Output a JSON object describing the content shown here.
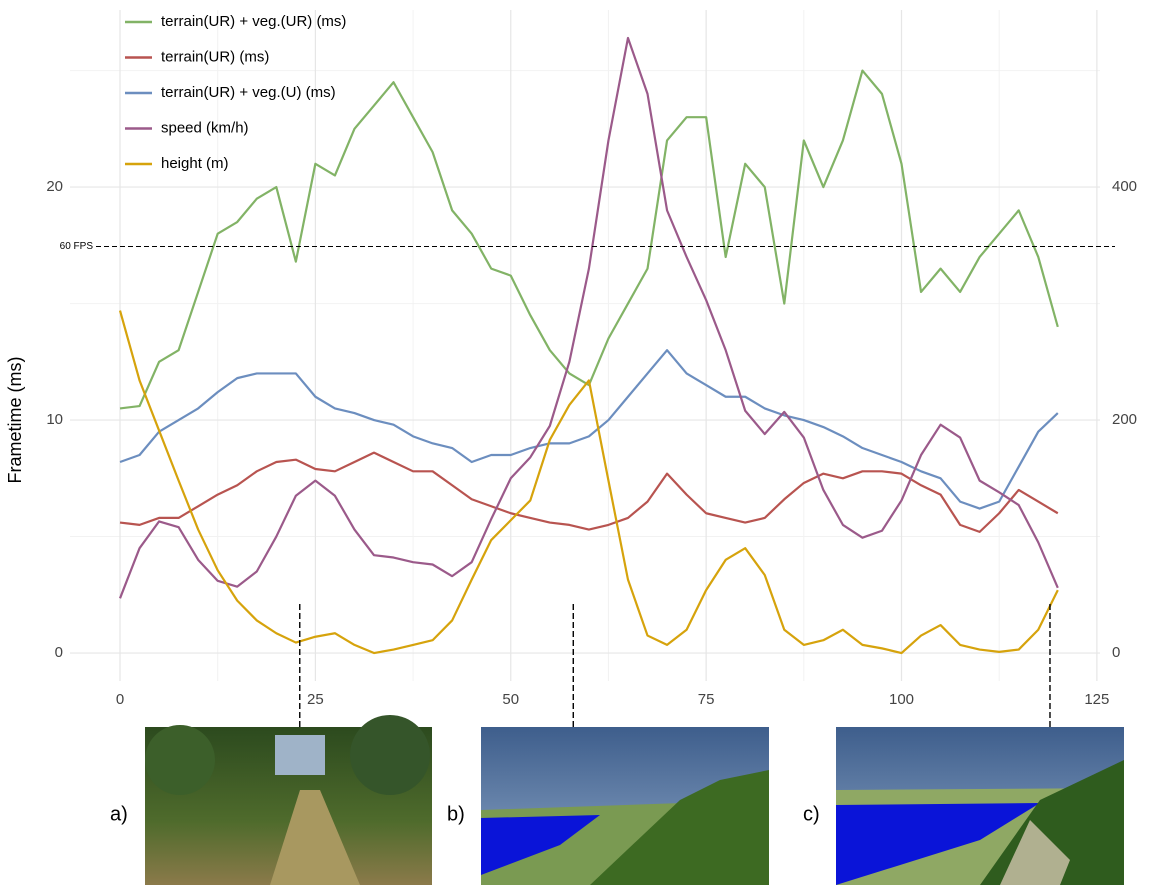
{
  "chart_data": {
    "type": "line",
    "y_label": "Frametime (ms)",
    "x": [
      0,
      2.5,
      5,
      7.5,
      10,
      12.5,
      15,
      17.5,
      20,
      22.5,
      25,
      27.5,
      30,
      32.5,
      35,
      37.5,
      40,
      42.5,
      45,
      47.5,
      50,
      52.5,
      55,
      57.5,
      60,
      62.5,
      65,
      67.5,
      70,
      72.5,
      75,
      77.5,
      80,
      82.5,
      85,
      87.5,
      90,
      92.5,
      95,
      97.5,
      100,
      102.5,
      105,
      107.5,
      110,
      112.5,
      115,
      117.5,
      120
    ],
    "series": [
      {
        "name": "terrain(UR) + veg.(UR) (ms)",
        "color": "#82b366",
        "values": [
          10.5,
          10.6,
          12.5,
          13,
          15.5,
          18,
          18.5,
          19.5,
          20,
          16.8,
          21,
          20.5,
          22.5,
          23.5,
          24.5,
          23,
          21.5,
          19,
          18,
          16.5,
          16.2,
          14.5,
          13,
          12,
          11.5,
          13.5,
          15,
          16.5,
          22,
          23,
          23,
          17,
          21,
          20,
          15,
          22,
          20,
          22,
          25,
          24,
          21,
          15.5,
          16.5,
          15.5,
          17,
          18,
          19,
          17,
          14
        ]
      },
      {
        "name": "terrain(UR) (ms)",
        "color": "#b85450",
        "values": [
          5.6,
          5.5,
          5.8,
          5.8,
          6.3,
          6.8,
          7.2,
          7.8,
          8.2,
          8.3,
          7.9,
          7.8,
          8.2,
          8.6,
          8.2,
          7.8,
          7.8,
          7.2,
          6.6,
          6.3,
          6.0,
          5.8,
          5.6,
          5.5,
          5.3,
          5.5,
          5.8,
          6.5,
          7.7,
          6.8,
          6.0,
          5.8,
          5.6,
          5.8,
          6.6,
          7.3,
          7.7,
          7.5,
          7.8,
          7.8,
          7.7,
          7.2,
          6.8,
          5.5,
          5.2,
          6.0,
          7.0,
          6.5,
          6.0
        ]
      },
      {
        "name": "terrain(UR) + veg.(U) (ms)",
        "color": "#6c8ebf",
        "values": [
          8.2,
          8.5,
          9.5,
          10,
          10.5,
          11.2,
          11.8,
          12,
          12,
          12,
          11,
          10.5,
          10.3,
          10,
          9.8,
          9.3,
          9,
          8.8,
          8.2,
          8.5,
          8.5,
          8.8,
          9,
          9,
          9.3,
          10,
          11,
          12,
          13,
          12,
          11.5,
          11,
          11,
          10.5,
          10.2,
          10,
          9.7,
          9.3,
          8.8,
          8.5,
          8.2,
          7.8,
          7.5,
          6.5,
          6.2,
          6.5,
          8,
          9.5,
          10.3
        ]
      },
      {
        "name": "speed (km/h)",
        "color": "#9b5a8a",
        "axis": "y2",
        "values": [
          47,
          90,
          113,
          108,
          80,
          62,
          57,
          70,
          100,
          135,
          148,
          135,
          106,
          84,
          82,
          78,
          76,
          66,
          78,
          115,
          150,
          168,
          195,
          250,
          330,
          440,
          528,
          480,
          380,
          340,
          303,
          260,
          208,
          188,
          207,
          185,
          140,
          110,
          99,
          105,
          131,
          170,
          196,
          185,
          148,
          138,
          127,
          95,
          56
        ]
      },
      {
        "name": "height (m)",
        "color": "#d6a30c",
        "axis": "y2",
        "values": [
          294,
          234,
          191,
          148,
          106,
          71,
          45,
          28,
          17,
          9,
          14,
          17,
          7,
          0,
          3,
          7,
          11,
          28,
          63,
          97,
          114,
          131,
          183,
          213,
          234,
          148,
          63,
          15,
          7,
          20,
          54,
          80,
          90,
          67,
          20,
          7,
          11,
          20,
          7,
          4,
          0,
          15,
          24,
          7,
          3,
          1,
          3,
          20,
          54
        ]
      }
    ],
    "xlim": [
      -6.4,
      125.4
    ],
    "xticks": [
      0,
      25,
      50,
      75,
      100,
      125
    ],
    "ylim": [
      -1.2,
      27.6
    ],
    "yticks": [
      0,
      10,
      20
    ],
    "y2lim": [
      -24,
      552
    ],
    "y2ticks": [
      0,
      200,
      400
    ],
    "grid": true,
    "hline": {
      "value": 17.45,
      "label": "60 FPS"
    },
    "markers": [
      {
        "x": 23,
        "label": "a)"
      },
      {
        "x": 58,
        "label": "b)"
      },
      {
        "x": 119,
        "label": "c)"
      }
    ]
  }
}
